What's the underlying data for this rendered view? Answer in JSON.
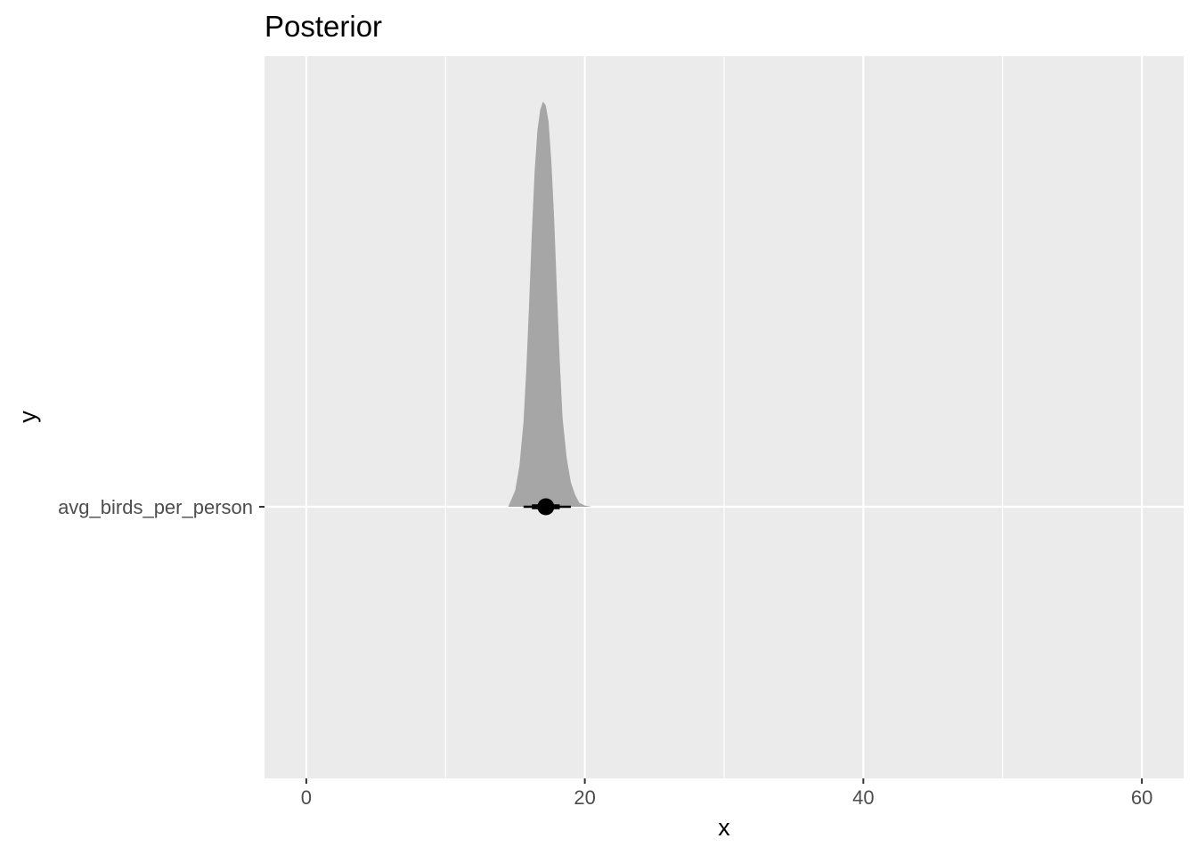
{
  "chart_data": {
    "type": "area",
    "title": "Posterior",
    "xlabel": "x",
    "ylabel": "y",
    "xlim": [
      -3,
      63
    ],
    "x_ticks": [
      0,
      20,
      40,
      60
    ],
    "x_minor_ticks": [
      10,
      30,
      50
    ],
    "grid": true,
    "categories": [
      "avg_birds_per_person"
    ],
    "series": [
      {
        "category": "avg_birds_per_person",
        "density": {
          "x": [
            14.5,
            15.0,
            15.3,
            15.6,
            15.8,
            16.0,
            16.2,
            16.4,
            16.6,
            16.8,
            17.0,
            17.2,
            17.4,
            17.6,
            17.8,
            18.0,
            18.2,
            18.4,
            18.7,
            19.0,
            19.3,
            19.6,
            20.0,
            20.5
          ],
          "y": [
            0.0,
            0.04,
            0.1,
            0.21,
            0.34,
            0.5,
            0.68,
            0.83,
            0.93,
            0.98,
            1.0,
            0.99,
            0.95,
            0.85,
            0.71,
            0.53,
            0.36,
            0.22,
            0.12,
            0.06,
            0.03,
            0.01,
            0.003,
            0.0
          ]
        },
        "point_estimate": 17.2,
        "interval_66": [
          16.2,
          18.2
        ],
        "interval_95": [
          15.6,
          19.0
        ]
      }
    ]
  }
}
